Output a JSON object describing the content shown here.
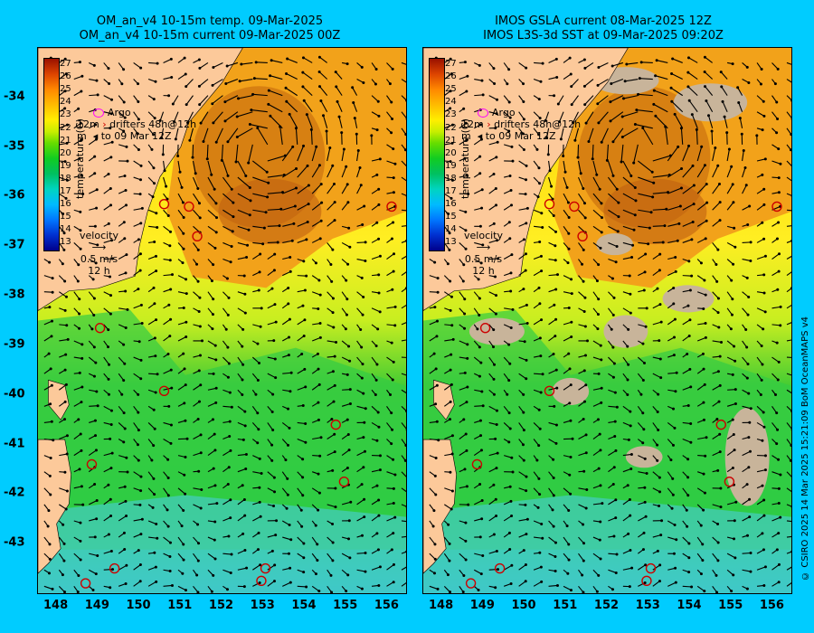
{
  "left": {
    "title_line1": "OM_an_v4  10-15m temp. 09-Mar-2025",
    "title_line2": "OM_an_v4  10-15m current 09-Mar-2025 00Z"
  },
  "right": {
    "title_line1": "IMOS GSLA current 08-Mar-2025 12Z",
    "title_line2": "IMOS L3S-3d SST at 09-Mar-2025 09:20Z"
  },
  "colorbar": {
    "ticks": [
      "27",
      "26",
      "25",
      "24",
      "23",
      "22",
      "21",
      "20",
      "19",
      "18",
      "17",
      "16",
      "15",
      "14",
      "13"
    ],
    "axis_label": "temperature (C)"
  },
  "legend": {
    "argo": "Argo",
    "drifters_line1": "12m",
    "drifters_line2": "drifters 48h@12h",
    "drifters_line3": "m",
    "drifters_line4": "to 09 Mar 12Z"
  },
  "velocity": {
    "label": "velocity",
    "scale": "0.5 m/s",
    "period": "12 h"
  },
  "x_ticks": [
    "148",
    "149",
    "150",
    "151",
    "152",
    "153",
    "154",
    "155",
    "156"
  ],
  "y_ticks": [
    "-34",
    "-35",
    "-36",
    "-37",
    "-38",
    "-39",
    "-40",
    "-41",
    "-42",
    "-43"
  ],
  "credit": "© CSIRO 2025   14 Mar 2025 15:21:09 BoM OceanMAPS v4",
  "colors": {
    "background": "#00ccff",
    "land": "#fcc99a",
    "no_data": "#c8b49a",
    "argo": "#ff00ff",
    "drifter": "#cc0000"
  },
  "argo_floats": [
    {
      "lon": 150.6,
      "lat": -36.15
    },
    {
      "lon": 151.2,
      "lat": -36.2
    },
    {
      "lon": 151.4,
      "lat": -36.8
    },
    {
      "lon": 156.1,
      "lat": -36.2
    },
    {
      "lon": 149.05,
      "lat": -38.65
    },
    {
      "lon": 150.6,
      "lat": -39.92
    },
    {
      "lon": 154.75,
      "lat": -40.6
    },
    {
      "lon": 148.85,
      "lat": -41.4
    },
    {
      "lon": 154.95,
      "lat": -41.75
    },
    {
      "lon": 153.05,
      "lat": -43.5
    },
    {
      "lon": 149.4,
      "lat": -43.5
    },
    {
      "lon": 148.7,
      "lat": -43.8
    },
    {
      "lon": 152.95,
      "lat": -43.75
    }
  ]
}
